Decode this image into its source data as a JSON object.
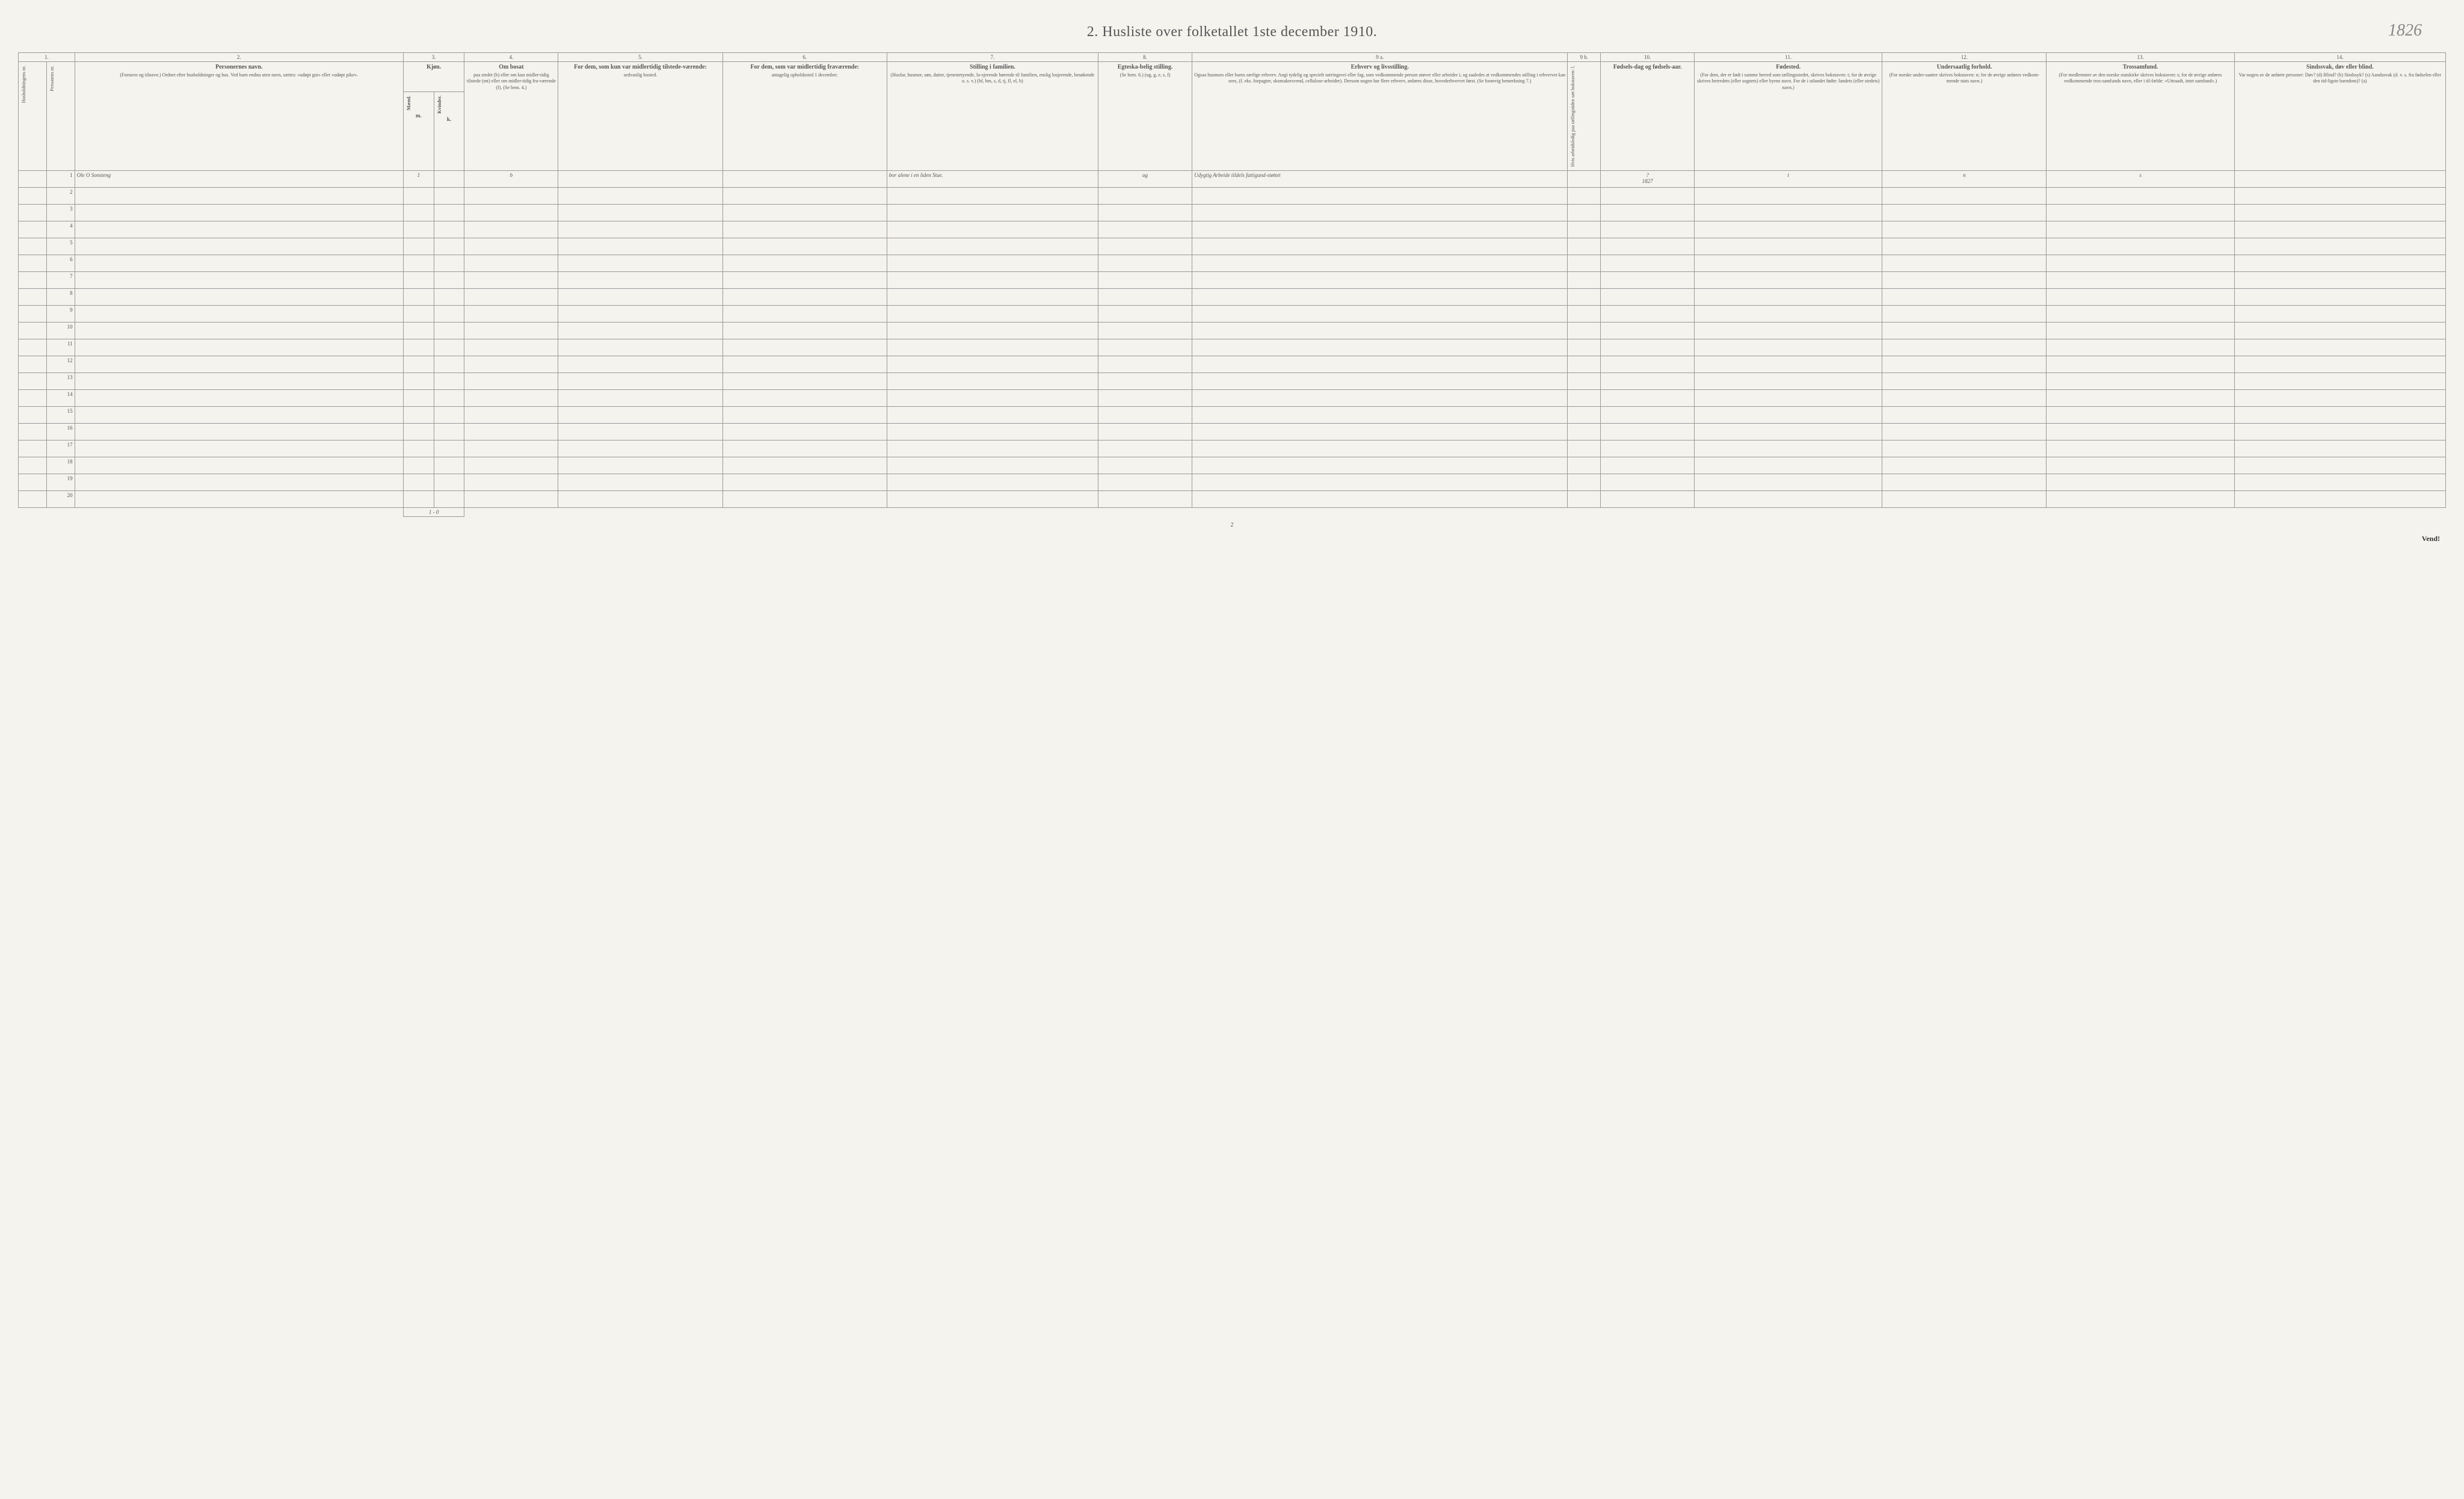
{
  "title": "2.   Husliste over folketallet 1ste december 1910.",
  "handwritten_year": "1826",
  "page_number": "2",
  "vend": "Vend!",
  "footer_tally": "1 - 0",
  "header": {
    "nums": [
      "1.",
      "",
      "2.",
      "3.",
      "4.",
      "5.",
      "6.",
      "7.",
      "8.",
      "9 a.",
      "9 b.",
      "10.",
      "11.",
      "12.",
      "13.",
      "14."
    ],
    "c1": {
      "vert": "Husholdningens nr."
    },
    "c1b": {
      "vert": "Personens nr."
    },
    "c2": {
      "label": "Personernes navn.",
      "detail": "(Fornavn og tilnavn.)\nOrdnet efter husholdninger og hus.\nVed barn endnu uten navn, sættes: «udøpt gut» eller «udøpt pike»."
    },
    "c3": {
      "label": "Kjøn.",
      "sub_m": "Mænd.",
      "sub_k": "Kvinder.",
      "mk_m": "m.",
      "mk_k": "k."
    },
    "c4": {
      "label": "Om bosat",
      "detail": "paa stedet (b) eller om kun midler-tidig tilstede (mt) eller om midler-tidig fra-værende (f). (Se bem. 4.)"
    },
    "c5": {
      "label": "For dem, som kun var midlertidig tilstede-værende:",
      "detail": "sedvanlig bosted."
    },
    "c6": {
      "label": "For dem, som var midlertidig fraværende:",
      "detail": "antagelig opholdssted 1 december."
    },
    "c7": {
      "label": "Stilling i familien.",
      "detail": "(Husfar, husmor, søn, datter, tjenestetyende, lo-sjerende hørende til familien, enslig losjerende, besøkende o. s. v.)\n(hf, hm, s, d, tj, fl, el, b)"
    },
    "c8": {
      "label": "Egteska-belig stilling.",
      "detail": "(Se bem. 6.)\n(ug, g, e, s, f)"
    },
    "c9a": {
      "label": "Erhverv og livsstilling.",
      "detail": "Ogsaa husmors eller barns særlige erhverv.\nAngi tydelig og specielt næringsvei eller fag, som vedkommende person utøver eller arbeider i, og saaledes at vedkommendes stilling i erhvervet kan sees, (f. eks. forpagter, skomakersvend, cellulose-arbeider). Dersom nogen har flere erhverv, anføres disse, hovederhvervet først.\n(Se forøvrig bemerkning 7.)"
    },
    "c9b": {
      "vert": "Hvis arbeidsledig paa tællingstiden sæt bokstaven: l."
    },
    "c10": {
      "label": "Fødsels-dag og fødsels-aar."
    },
    "c11": {
      "label": "Fødested.",
      "detail": "(For dem, der er født i samme herred som tællingsstedet, skrives bokstaven: t; for de øvrige skrives herredets (eller sognets) eller byens navn. For de i utlandet fødte: landets (eller stedets) navn.)"
    },
    "c12": {
      "label": "Undersaatlig forhold.",
      "detail": "(For norske under-saatter skrives bokstaven: n; for de øvrige anføres vedkom-mende stats navn.)"
    },
    "c13": {
      "label": "Trossamfund.",
      "detail": "(For medlemmer av den norske statskirke skrives bokstaven: s; for de øvrige anføres vedkommende tros-samfunds navn, eller i til-fælde: «Uttraadt, intet samfund».)"
    },
    "c14": {
      "label": "Sindssvak, døv eller blind.",
      "detail": "Var nogen av de anførte personer:\nDøv?     (d)\nBlind?   (b)\nSindssyk? (s)\nAandssvak (d. v. s. fra fødselen eller den tid-ligste barndom)? (a)"
    }
  },
  "rows": [
    {
      "n": "1",
      "name": "Ole O Sonsteng",
      "m": "1",
      "k": "",
      "c4": "b",
      "c5": "",
      "c6": "",
      "c7": "bor alene i en liden Stue.",
      "c8": "ug",
      "c9a": "Udygtig Arbeide tildels fattigund-støttet",
      "c9b": "",
      "c10q": "?",
      "c10": "1827",
      "c11": "t",
      "c12": "n",
      "c13": "s",
      "c14": ""
    },
    {
      "n": "2"
    },
    {
      "n": "3"
    },
    {
      "n": "4"
    },
    {
      "n": "5"
    },
    {
      "n": "6"
    },
    {
      "n": "7"
    },
    {
      "n": "8"
    },
    {
      "n": "9"
    },
    {
      "n": "10"
    },
    {
      "n": "11"
    },
    {
      "n": "12"
    },
    {
      "n": "13"
    },
    {
      "n": "14"
    },
    {
      "n": "15"
    },
    {
      "n": "16"
    },
    {
      "n": "17"
    },
    {
      "n": "18"
    },
    {
      "n": "19"
    },
    {
      "n": "20"
    }
  ],
  "col_widths": {
    "c1": "1.2%",
    "c1b": "1.2%",
    "c2": "14%",
    "c3m": "1.3%",
    "c3k": "1.3%",
    "c4": "4%",
    "c5": "7%",
    "c6": "7%",
    "c7": "9%",
    "c8": "4%",
    "c9a": "16%",
    "c9b": "1.4%",
    "c10": "4%",
    "c11": "8%",
    "c12": "7%",
    "c13": "8%",
    "c14": "9%"
  },
  "colors": {
    "bg": "#f5f3ee",
    "border": "#999999",
    "text": "#555555",
    "ink": "#3a3a3a",
    "blue_ink": "#6a6aa0"
  }
}
